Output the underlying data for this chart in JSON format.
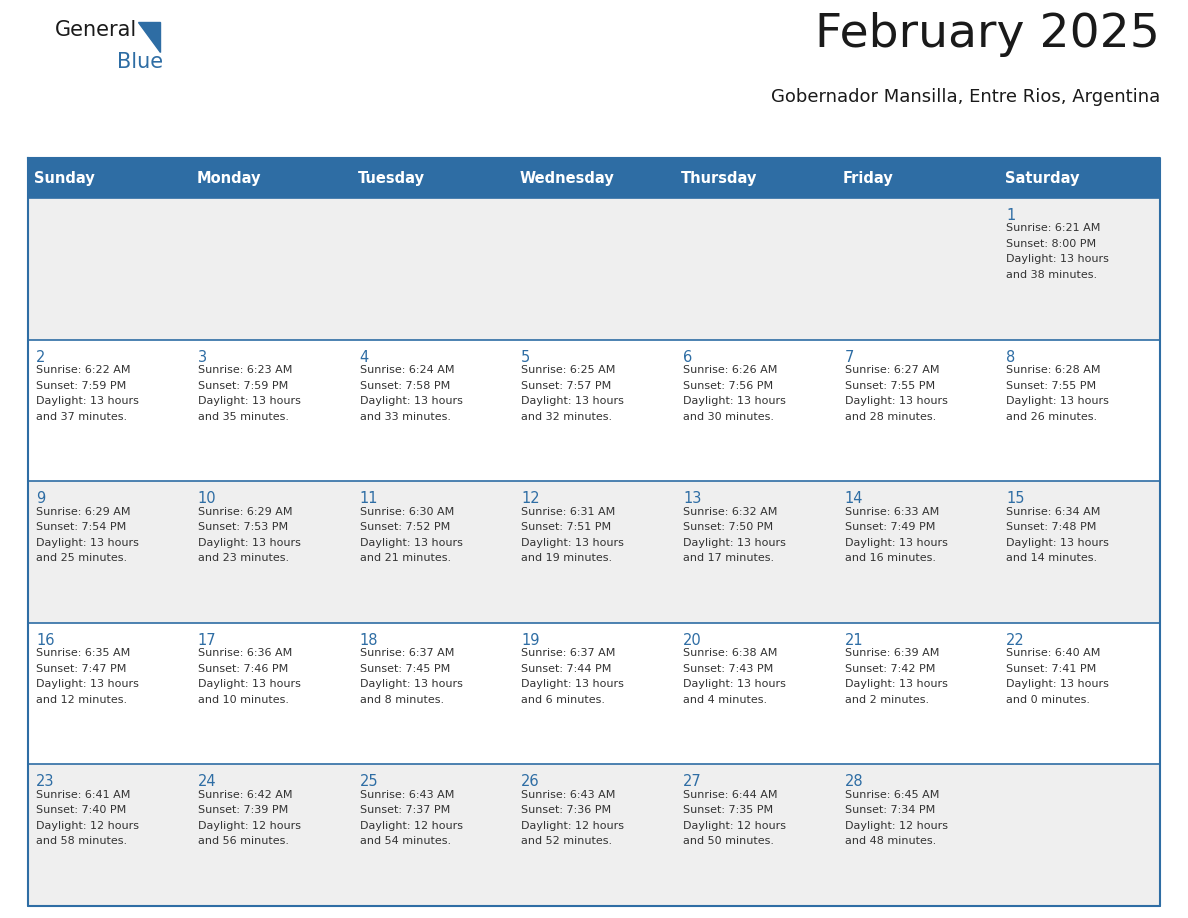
{
  "title": "February 2025",
  "subtitle": "Gobernador Mansilla, Entre Rios, Argentina",
  "header_bg": "#2E6DA4",
  "header_text_color": "#FFFFFF",
  "day_headers": [
    "Sunday",
    "Monday",
    "Tuesday",
    "Wednesday",
    "Thursday",
    "Friday",
    "Saturday"
  ],
  "bg_color": "#FFFFFF",
  "cell_bg_odd": "#EFEFEF",
  "cell_bg_even": "#FFFFFF",
  "grid_color": "#2E6DA4",
  "date_color": "#2E6DA4",
  "text_color": "#333333",
  "title_color": "#1a1a1a",
  "subtitle_color": "#1a1a1a",
  "days": [
    {
      "day": 1,
      "col": 6,
      "row": 0,
      "sunrise": "6:21 AM",
      "sunset": "8:00 PM",
      "daylight_h": "13 hours",
      "daylight_m": "and 38 minutes."
    },
    {
      "day": 2,
      "col": 0,
      "row": 1,
      "sunrise": "6:22 AM",
      "sunset": "7:59 PM",
      "daylight_h": "13 hours",
      "daylight_m": "and 37 minutes."
    },
    {
      "day": 3,
      "col": 1,
      "row": 1,
      "sunrise": "6:23 AM",
      "sunset": "7:59 PM",
      "daylight_h": "13 hours",
      "daylight_m": "and 35 minutes."
    },
    {
      "day": 4,
      "col": 2,
      "row": 1,
      "sunrise": "6:24 AM",
      "sunset": "7:58 PM",
      "daylight_h": "13 hours",
      "daylight_m": "and 33 minutes."
    },
    {
      "day": 5,
      "col": 3,
      "row": 1,
      "sunrise": "6:25 AM",
      "sunset": "7:57 PM",
      "daylight_h": "13 hours",
      "daylight_m": "and 32 minutes."
    },
    {
      "day": 6,
      "col": 4,
      "row": 1,
      "sunrise": "6:26 AM",
      "sunset": "7:56 PM",
      "daylight_h": "13 hours",
      "daylight_m": "and 30 minutes."
    },
    {
      "day": 7,
      "col": 5,
      "row": 1,
      "sunrise": "6:27 AM",
      "sunset": "7:55 PM",
      "daylight_h": "13 hours",
      "daylight_m": "and 28 minutes."
    },
    {
      "day": 8,
      "col": 6,
      "row": 1,
      "sunrise": "6:28 AM",
      "sunset": "7:55 PM",
      "daylight_h": "13 hours",
      "daylight_m": "and 26 minutes."
    },
    {
      "day": 9,
      "col": 0,
      "row": 2,
      "sunrise": "6:29 AM",
      "sunset": "7:54 PM",
      "daylight_h": "13 hours",
      "daylight_m": "and 25 minutes."
    },
    {
      "day": 10,
      "col": 1,
      "row": 2,
      "sunrise": "6:29 AM",
      "sunset": "7:53 PM",
      "daylight_h": "13 hours",
      "daylight_m": "and 23 minutes."
    },
    {
      "day": 11,
      "col": 2,
      "row": 2,
      "sunrise": "6:30 AM",
      "sunset": "7:52 PM",
      "daylight_h": "13 hours",
      "daylight_m": "and 21 minutes."
    },
    {
      "day": 12,
      "col": 3,
      "row": 2,
      "sunrise": "6:31 AM",
      "sunset": "7:51 PM",
      "daylight_h": "13 hours",
      "daylight_m": "and 19 minutes."
    },
    {
      "day": 13,
      "col": 4,
      "row": 2,
      "sunrise": "6:32 AM",
      "sunset": "7:50 PM",
      "daylight_h": "13 hours",
      "daylight_m": "and 17 minutes."
    },
    {
      "day": 14,
      "col": 5,
      "row": 2,
      "sunrise": "6:33 AM",
      "sunset": "7:49 PM",
      "daylight_h": "13 hours",
      "daylight_m": "and 16 minutes."
    },
    {
      "day": 15,
      "col": 6,
      "row": 2,
      "sunrise": "6:34 AM",
      "sunset": "7:48 PM",
      "daylight_h": "13 hours",
      "daylight_m": "and 14 minutes."
    },
    {
      "day": 16,
      "col": 0,
      "row": 3,
      "sunrise": "6:35 AM",
      "sunset": "7:47 PM",
      "daylight_h": "13 hours",
      "daylight_m": "and 12 minutes."
    },
    {
      "day": 17,
      "col": 1,
      "row": 3,
      "sunrise": "6:36 AM",
      "sunset": "7:46 PM",
      "daylight_h": "13 hours",
      "daylight_m": "and 10 minutes."
    },
    {
      "day": 18,
      "col": 2,
      "row": 3,
      "sunrise": "6:37 AM",
      "sunset": "7:45 PM",
      "daylight_h": "13 hours",
      "daylight_m": "and 8 minutes."
    },
    {
      "day": 19,
      "col": 3,
      "row": 3,
      "sunrise": "6:37 AM",
      "sunset": "7:44 PM",
      "daylight_h": "13 hours",
      "daylight_m": "and 6 minutes."
    },
    {
      "day": 20,
      "col": 4,
      "row": 3,
      "sunrise": "6:38 AM",
      "sunset": "7:43 PM",
      "daylight_h": "13 hours",
      "daylight_m": "and 4 minutes."
    },
    {
      "day": 21,
      "col": 5,
      "row": 3,
      "sunrise": "6:39 AM",
      "sunset": "7:42 PM",
      "daylight_h": "13 hours",
      "daylight_m": "and 2 minutes."
    },
    {
      "day": 22,
      "col": 6,
      "row": 3,
      "sunrise": "6:40 AM",
      "sunset": "7:41 PM",
      "daylight_h": "13 hours",
      "daylight_m": "and 0 minutes."
    },
    {
      "day": 23,
      "col": 0,
      "row": 4,
      "sunrise": "6:41 AM",
      "sunset": "7:40 PM",
      "daylight_h": "12 hours",
      "daylight_m": "and 58 minutes."
    },
    {
      "day": 24,
      "col": 1,
      "row": 4,
      "sunrise": "6:42 AM",
      "sunset": "7:39 PM",
      "daylight_h": "12 hours",
      "daylight_m": "and 56 minutes."
    },
    {
      "day": 25,
      "col": 2,
      "row": 4,
      "sunrise": "6:43 AM",
      "sunset": "7:37 PM",
      "daylight_h": "12 hours",
      "daylight_m": "and 54 minutes."
    },
    {
      "day": 26,
      "col": 3,
      "row": 4,
      "sunrise": "6:43 AM",
      "sunset": "7:36 PM",
      "daylight_h": "12 hours",
      "daylight_m": "and 52 minutes."
    },
    {
      "day": 27,
      "col": 4,
      "row": 4,
      "sunrise": "6:44 AM",
      "sunset": "7:35 PM",
      "daylight_h": "12 hours",
      "daylight_m": "and 50 minutes."
    },
    {
      "day": 28,
      "col": 5,
      "row": 4,
      "sunrise": "6:45 AM",
      "sunset": "7:34 PM",
      "daylight_h": "12 hours",
      "daylight_m": "and 48 minutes."
    }
  ],
  "num_rows": 5,
  "num_cols": 7
}
